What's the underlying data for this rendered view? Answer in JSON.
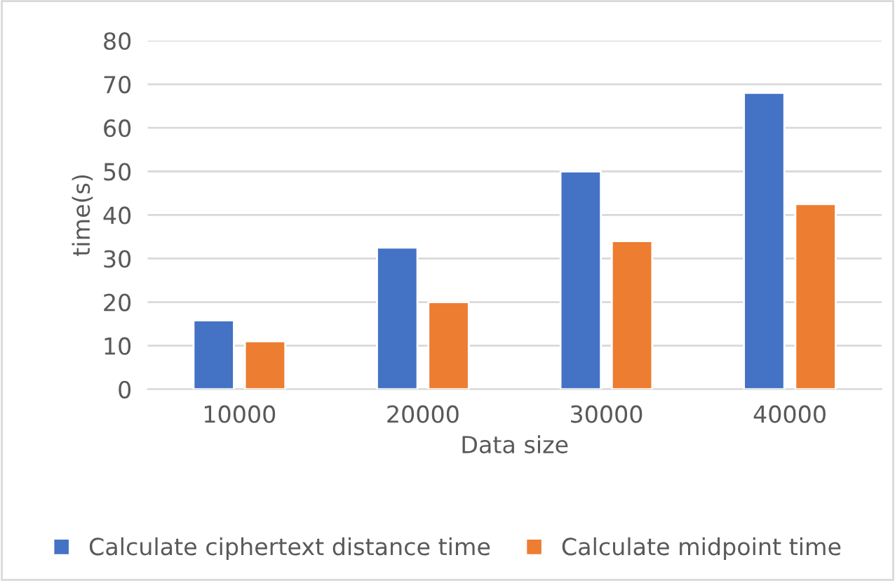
{
  "chart_data": {
    "type": "bar",
    "xlabel": "Data size",
    "ylabel": "time(s)",
    "categories": [
      "10000",
      "20000",
      "30000",
      "40000"
    ],
    "series": [
      {
        "name": "Calculate ciphertext distance time",
        "color": "#4472c4",
        "values": [
          15.8,
          32.5,
          50,
          68
        ]
      },
      {
        "name": "Calculate midpoint time",
        "color": "#ed7d31",
        "values": [
          11,
          20,
          34,
          42.5
        ]
      }
    ],
    "ylim": [
      0,
      80
    ],
    "yticks": [
      0,
      10,
      20,
      30,
      40,
      50,
      60,
      70,
      80
    ],
    "grid": "y",
    "legend": "bottom"
  }
}
